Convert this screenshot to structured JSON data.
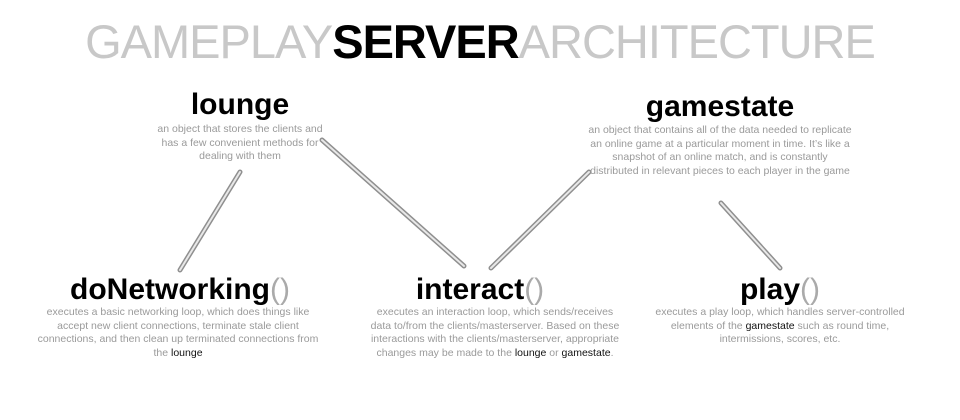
{
  "title": {
    "part1": "GAMEPLAY",
    "part2": "SERVER",
    "part3": "ARCHITECTURE"
  },
  "nodes": {
    "lounge": {
      "title": "lounge",
      "desc": "an object that stores the clients and has a few convenient methods for dealing with them"
    },
    "gamestate": {
      "title": "gamestate",
      "desc": "an object that contains all of the data needed to replicate an online game at a particular moment in time. It’s like a snapshot of an online match, and is constantly distributed in relevant pieces to each player in the game"
    },
    "doNetworking": {
      "title": "doNetworking",
      "paren": "()",
      "desc": "executes a basic networking loop, which does things like accept new client connections, terminate stale client connections, and then clean up terminated connections from the",
      "ref": "lounge"
    },
    "interact": {
      "title": "interact",
      "paren": "()",
      "desc": "executes an interaction loop, which sends/receives data to/from the clients/masterserver. Based on these interactions with the clients/masterserver, appropriate changes may be made to the",
      "ref1": "lounge",
      "joiner": "or",
      "ref2": "gamestate",
      "end": "."
    },
    "play": {
      "title": "play",
      "paren": "()",
      "desc_pre": "executes a play loop, which handles server-controlled elements of the",
      "ref": "gamestate",
      "desc_post": "such as round time, intermissions, scores, etc."
    }
  },
  "colors": {
    "title_light": "#c8c8c8",
    "title_bold": "#000000",
    "desc": "#9a9a9a",
    "connector": "#c4c4c4"
  }
}
